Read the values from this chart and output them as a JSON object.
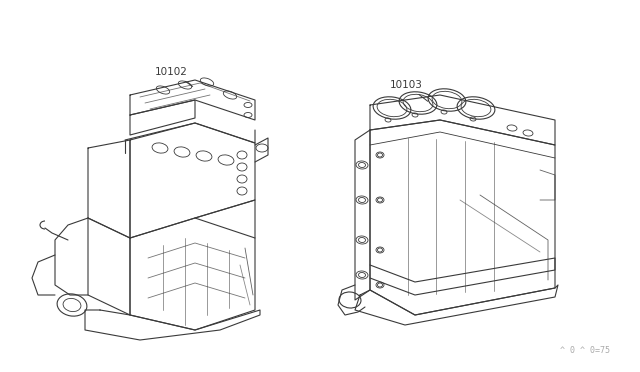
{
  "background_color": "#ffffff",
  "bg_rect_color": "#f0ede8",
  "line_color": "#3a3a3a",
  "label_color": "#3a3a3a",
  "watermark_color": "#aaaaaa",
  "watermark": "^ 0 ^ 0≵75",
  "watermark2": "^ 0 ^ 0=75",
  "label_10102": "10102",
  "label_10103": "10103",
  "figsize": [
    6.4,
    3.72
  ],
  "dpi": 100
}
